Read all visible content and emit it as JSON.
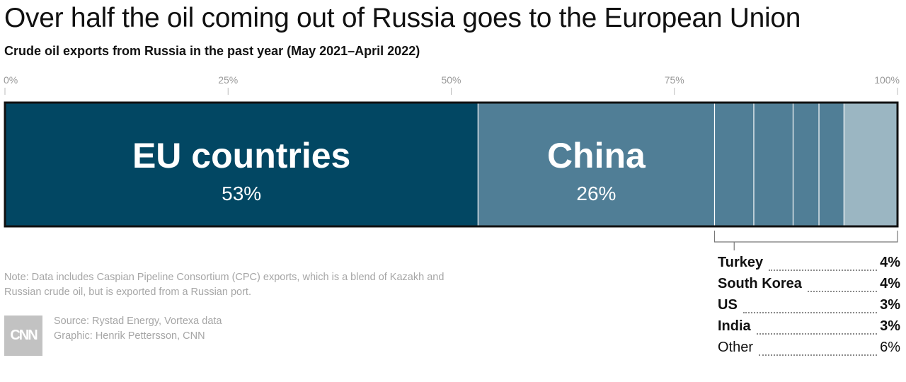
{
  "title": "Over half the oil coming out of Russia goes to the European Union",
  "subtitle": "Crude oil exports from Russia in the past year (May 2021–April 2022)",
  "note": "Note: Data includes Caspian Pipeline Consortium (CPC) exports, which is a blend of Kazakh and Russian crude oil, but is exported from a Russian port.",
  "source": "Source: Rystad Energy, Vortexa data",
  "graphic": "Graphic: Henrik Pettersson, CNN",
  "logo": "CNN",
  "colors": {
    "eu": "#024763",
    "china": "#507e96",
    "small": "#507e96",
    "other": "#9bb6c2",
    "outline": "#111111"
  },
  "chart_data": {
    "type": "bar",
    "orientation": "horizontal-stacked",
    "title": "Over half the oil coming out of Russia goes to the European Union",
    "subtitle": "Crude oil exports from Russia in the past year (May 2021–April 2022)",
    "xlim": [
      0,
      100
    ],
    "ticks": [
      {
        "value": 0,
        "label": "0%"
      },
      {
        "value": 25,
        "label": "25%"
      },
      {
        "value": 50,
        "label": "50%"
      },
      {
        "value": 75,
        "label": "75%"
      },
      {
        "value": 100,
        "label": "100%"
      }
    ],
    "segments": [
      {
        "name": "EU countries",
        "value": 53,
        "label": "53%",
        "color": "#024763",
        "inline": true
      },
      {
        "name": "China",
        "value": 26.5,
        "label": "26%",
        "color": "#507e96",
        "inline": true
      },
      {
        "name": "Turkey",
        "value": 4.4,
        "label": "4%",
        "color": "#507e96",
        "inline": false,
        "bold": true
      },
      {
        "name": "South Korea",
        "value": 4.4,
        "label": "4%",
        "color": "#507e96",
        "inline": false,
        "bold": true
      },
      {
        "name": "US",
        "value": 2.9,
        "label": "3%",
        "color": "#507e96",
        "inline": false,
        "bold": true
      },
      {
        "name": "India",
        "value": 2.8,
        "label": "3%",
        "color": "#507e96",
        "inline": false,
        "bold": true
      },
      {
        "name": "Other",
        "value": 6,
        "label": "6%",
        "color": "#9bb6c2",
        "inline": false,
        "bold": false
      }
    ]
  }
}
